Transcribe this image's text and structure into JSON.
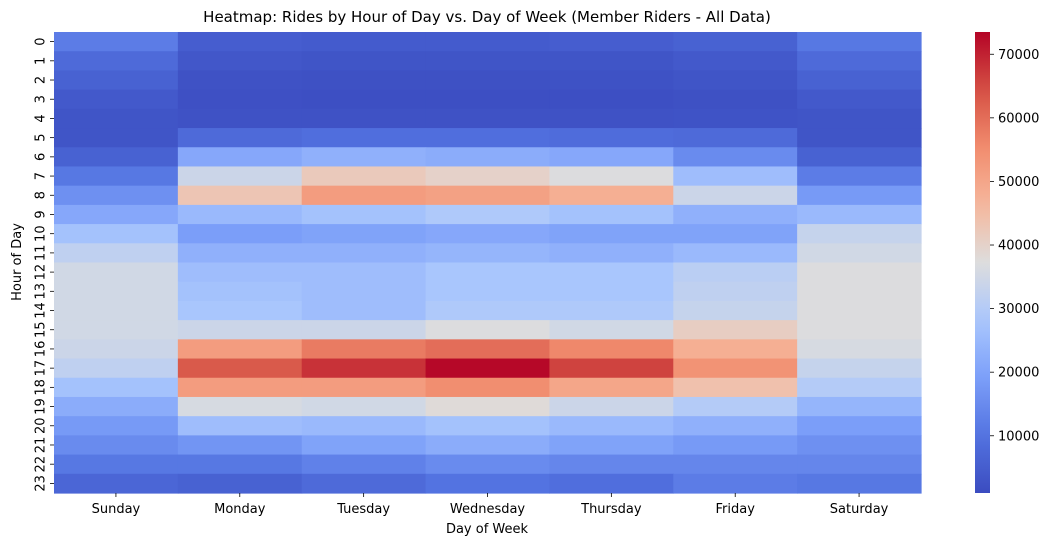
{
  "chart_data": {
    "type": "heatmap",
    "title": "Heatmap: Rides by Hour of Day vs. Day of Week (Member Riders - All Data)",
    "xlabel": "Day of Week",
    "ylabel": "Hour of Day",
    "x_categories": [
      "Sunday",
      "Monday",
      "Tuesday",
      "Wednesday",
      "Thursday",
      "Friday",
      "Saturday"
    ],
    "y_categories": [
      "0",
      "1",
      "2",
      "3",
      "4",
      "5",
      "6",
      "7",
      "8",
      "9",
      "10",
      "11",
      "12",
      "13",
      "14",
      "15",
      "16",
      "17",
      "18",
      "19",
      "20",
      "21",
      "22",
      "23"
    ],
    "values": [
      [
        12000,
        5000,
        4500,
        4500,
        5000,
        6000,
        11000
      ],
      [
        8000,
        3500,
        3000,
        3000,
        3000,
        4000,
        8000
      ],
      [
        6000,
        2500,
        2200,
        2200,
        2300,
        3000,
        6000
      ],
      [
        4000,
        2000,
        1800,
        1800,
        1800,
        2200,
        4000
      ],
      [
        3000,
        2500,
        2500,
        2500,
        2500,
        2600,
        3000
      ],
      [
        3000,
        8000,
        9000,
        9000,
        8500,
        8000,
        3000
      ],
      [
        6000,
        21000,
        23000,
        22000,
        21000,
        15000,
        6000
      ],
      [
        11000,
        34000,
        42000,
        40000,
        37000,
        26000,
        12000
      ],
      [
        16000,
        43000,
        52000,
        51000,
        48000,
        34000,
        18000
      ],
      [
        21000,
        25000,
        27000,
        29000,
        27000,
        23000,
        25000
      ],
      [
        27000,
        19000,
        20000,
        21000,
        20000,
        20000,
        33000
      ],
      [
        32000,
        23000,
        23000,
        24000,
        23000,
        25000,
        35000
      ],
      [
        35000,
        26000,
        26000,
        28000,
        28000,
        31000,
        37000
      ],
      [
        35000,
        27000,
        26000,
        28000,
        28000,
        32000,
        37000
      ],
      [
        35000,
        28000,
        26000,
        29000,
        29000,
        33000,
        37000
      ],
      [
        35000,
        34000,
        34000,
        37000,
        35000,
        41000,
        37000
      ],
      [
        34000,
        52000,
        58000,
        60000,
        56000,
        48000,
        36000
      ],
      [
        32000,
        63000,
        68000,
        73000,
        66000,
        54000,
        33000
      ],
      [
        27000,
        52000,
        52000,
        55000,
        50000,
        44000,
        30000
      ],
      [
        22000,
        36000,
        35000,
        38000,
        34000,
        30000,
        24000
      ],
      [
        18000,
        26000,
        25000,
        27000,
        25000,
        23000,
        19000
      ],
      [
        15000,
        17000,
        20000,
        22000,
        20000,
        18000,
        16000
      ],
      [
        11000,
        11000,
        13000,
        15000,
        14000,
        14000,
        14000
      ],
      [
        7000,
        6000,
        8000,
        10000,
        9000,
        12000,
        11000
      ]
    ],
    "colormap": "coolwarm",
    "vmin": 1000,
    "vmax": 73500,
    "colorbar_ticks": [
      10000,
      20000,
      30000,
      40000,
      50000,
      60000,
      70000
    ]
  }
}
